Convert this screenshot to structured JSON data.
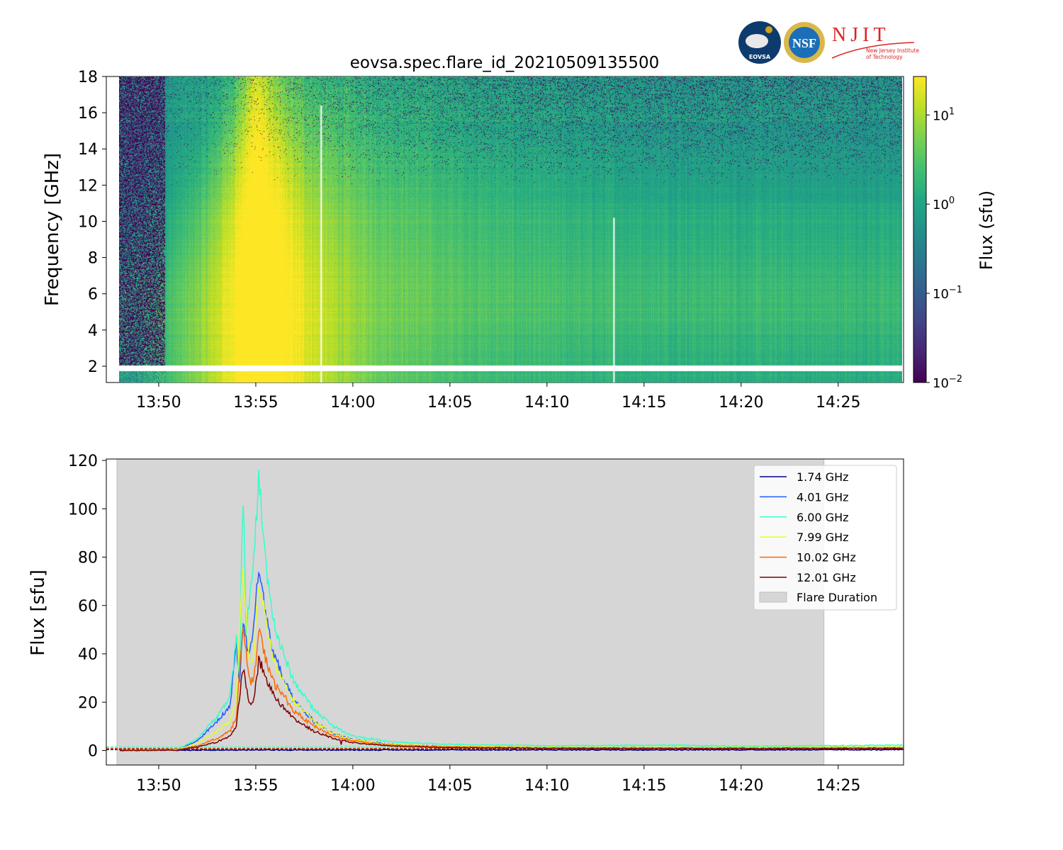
{
  "title": "eovsa.spec.flare_id_20210509135500",
  "logos": [
    {
      "name": "EOVSA",
      "text": "EOVSA"
    },
    {
      "name": "NSF",
      "text": "NSF"
    },
    {
      "name": "NJIT",
      "text": "NJIT",
      "subtext": "New Jersey Institute of Technology"
    }
  ],
  "chart_data": [
    {
      "type": "heatmap",
      "title": "eovsa.spec.flare_id_20210509135500",
      "xlabel": "",
      "ylabel": "Frequency [GHz]",
      "xlim": [
        "13:47:18",
        "14:28:22"
      ],
      "ylim": [
        1.1,
        18
      ],
      "xticks": [
        "13:50",
        "13:55",
        "14:00",
        "14:05",
        "14:10",
        "14:15",
        "14:20",
        "14:25"
      ],
      "yticks": [
        2,
        4,
        6,
        8,
        10,
        12,
        14,
        16,
        18
      ],
      "data_start": "13:48:00",
      "colormap": "viridis",
      "colorbar": {
        "label": "Flux  (sfu)",
        "scale": "log",
        "range": [
          0.01,
          27
        ],
        "ticks": [
          {
            "base": "10",
            "exp": "1",
            "value": 10
          },
          {
            "base": "10",
            "exp": "0",
            "value": 1
          },
          {
            "base": "10",
            "exp": "−1",
            "value": 0.1
          },
          {
            "base": "10",
            "exp": "−2",
            "value": 0.01
          }
        ]
      },
      "gaps": {
        "frequency_band_ghz": [
          1.73,
          2.03
        ],
        "time_lines": [
          {
            "time": "13:58:20",
            "fmax": 16.4
          },
          {
            "time": "14:13:25",
            "fmax": 10.2
          }
        ]
      },
      "peak_time": "13:55:00"
    },
    {
      "type": "line",
      "xlabel": "",
      "ylabel": "Flux [sfu]",
      "xlim": [
        "13:47:18",
        "14:28:22"
      ],
      "ylim": [
        -6,
        120.6
      ],
      "xticks": [
        "13:50",
        "13:55",
        "14:00",
        "14:05",
        "14:10",
        "14:15",
        "14:20",
        "14:25"
      ],
      "yticks": [
        0,
        20,
        40,
        60,
        80,
        100,
        120
      ],
      "legend_position": "upper right",
      "flare_duration": {
        "label": "Flare Duration",
        "start": "13:47:51",
        "end": "14:24:16",
        "color": "#d6d6d6"
      },
      "series": [
        {
          "name": "1.74 GHz",
          "color": "#00008b",
          "baseline": 0.3,
          "points": [
            [
              "13:48:00",
              0.1
            ],
            [
              "13:55:00",
              0.2
            ],
            [
              "14:28:20",
              0.3
            ]
          ]
        },
        {
          "name": "4.01 GHz",
          "color": "#1f5cff",
          "baseline": 0.9,
          "points": [
            [
              "13:48:00",
              0
            ],
            [
              "13:51:00",
              0.5
            ],
            [
              "13:52:00",
              4
            ],
            [
              "13:53:00",
              12
            ],
            [
              "13:53:40",
              18
            ],
            [
              "13:54:00",
              45
            ],
            [
              "13:54:10",
              25
            ],
            [
              "13:54:20",
              54
            ],
            [
              "13:54:40",
              38
            ],
            [
              "13:54:55",
              55
            ],
            [
              "13:55:10",
              75
            ],
            [
              "13:55:25",
              62
            ],
            [
              "13:55:50",
              42
            ],
            [
              "13:56:30",
              28
            ],
            [
              "13:57:00",
              20
            ],
            [
              "13:58:00",
              12
            ],
            [
              "13:59:00",
              7
            ],
            [
              "14:00:00",
              4.5
            ],
            [
              "14:02:00",
              2.5
            ],
            [
              "14:05:00",
              1.6
            ],
            [
              "14:10:00",
              1.2
            ],
            [
              "14:20:00",
              1.1
            ],
            [
              "14:28:20",
              1.3
            ]
          ]
        },
        {
          "name": "6.00 GHz",
          "color": "#33ffcc",
          "baseline": 1.6,
          "points": [
            [
              "13:48:00",
              0
            ],
            [
              "13:51:00",
              0.5
            ],
            [
              "13:52:00",
              5
            ],
            [
              "13:53:00",
              14
            ],
            [
              "13:53:40",
              22
            ],
            [
              "13:54:00",
              46
            ],
            [
              "13:54:10",
              30
            ],
            [
              "13:54:20",
              114
            ],
            [
              "13:54:30",
              50
            ],
            [
              "13:54:50",
              72
            ],
            [
              "13:55:10",
              113
            ],
            [
              "13:55:30",
              78
            ],
            [
              "13:56:00",
              50
            ],
            [
              "13:56:30",
              38
            ],
            [
              "13:57:00",
              28
            ],
            [
              "13:58:00",
              17
            ],
            [
              "13:59:00",
              10
            ],
            [
              "14:00:00",
              6
            ],
            [
              "14:02:00",
              3.5
            ],
            [
              "14:05:00",
              2.5
            ],
            [
              "14:10:00",
              2
            ],
            [
              "14:17:00",
              2.2
            ],
            [
              "14:20:00",
              1.8
            ],
            [
              "14:28:20",
              2.2
            ]
          ]
        },
        {
          "name": "7.99 GHz",
          "color": "#e6ff1a",
          "baseline": 1.2,
          "points": [
            [
              "13:48:00",
              0
            ],
            [
              "13:51:00",
              0.4
            ],
            [
              "13:52:00",
              3
            ],
            [
              "13:53:00",
              8
            ],
            [
              "13:53:40",
              12
            ],
            [
              "13:54:00",
              20
            ],
            [
              "13:54:20",
              78
            ],
            [
              "13:54:40",
              35
            ],
            [
              "13:54:55",
              40
            ],
            [
              "13:55:10",
              70
            ],
            [
              "13:55:30",
              55
            ],
            [
              "13:56:00",
              35
            ],
            [
              "13:56:30",
              28
            ],
            [
              "13:57:00",
              20
            ],
            [
              "13:58:00",
              12
            ],
            [
              "13:59:00",
              7
            ],
            [
              "14:00:00",
              4.5
            ],
            [
              "14:02:00",
              2.5
            ],
            [
              "14:05:00",
              1.8
            ],
            [
              "14:10:00",
              1.4
            ],
            [
              "14:20:00",
              1.3
            ],
            [
              "14:28:20",
              1.5
            ]
          ]
        },
        {
          "name": "10.02 GHz",
          "color": "#ff6a00",
          "baseline": 1.0,
          "points": [
            [
              "13:48:00",
              0
            ],
            [
              "13:51:00",
              0.3
            ],
            [
              "13:52:00",
              2
            ],
            [
              "13:53:00",
              5
            ],
            [
              "13:53:40",
              8
            ],
            [
              "13:54:00",
              14
            ],
            [
              "13:54:20",
              52
            ],
            [
              "13:54:40",
              28
            ],
            [
              "13:54:55",
              30
            ],
            [
              "13:55:10",
              50
            ],
            [
              "13:55:30",
              38
            ],
            [
              "13:56:00",
              27
            ],
            [
              "13:56:30",
              22
            ],
            [
              "13:57:00",
              16
            ],
            [
              "13:58:00",
              10
            ],
            [
              "13:59:00",
              6
            ],
            [
              "14:00:00",
              4
            ],
            [
              "14:02:00",
              2.2
            ],
            [
              "14:05:00",
              1.5
            ],
            [
              "14:10:00",
              1.1
            ],
            [
              "14:20:00",
              1
            ],
            [
              "14:28:20",
              1.1
            ]
          ]
        },
        {
          "name": "12.01 GHz",
          "color": "#800000",
          "baseline": 0.7,
          "points": [
            [
              "13:48:00",
              0
            ],
            [
              "13:51:00",
              0.2
            ],
            [
              "13:52:00",
              1.5
            ],
            [
              "13:53:00",
              3.5
            ],
            [
              "13:53:40",
              6
            ],
            [
              "13:54:00",
              10
            ],
            [
              "13:54:20",
              35
            ],
            [
              "13:54:40",
              18
            ],
            [
              "13:54:55",
              22
            ],
            [
              "13:55:10",
              38
            ],
            [
              "13:55:30",
              30
            ],
            [
              "13:56:00",
              22
            ],
            [
              "13:56:30",
              17
            ],
            [
              "13:57:00",
              13
            ],
            [
              "13:58:00",
              8
            ],
            [
              "13:59:00",
              5
            ],
            [
              "14:00:00",
              3.3
            ],
            [
              "14:02:00",
              1.8
            ],
            [
              "14:05:00",
              1.2
            ],
            [
              "14:10:00",
              0.9
            ],
            [
              "14:20:00",
              0.8
            ],
            [
              "14:28:20",
              0.9
            ]
          ]
        }
      ]
    }
  ]
}
